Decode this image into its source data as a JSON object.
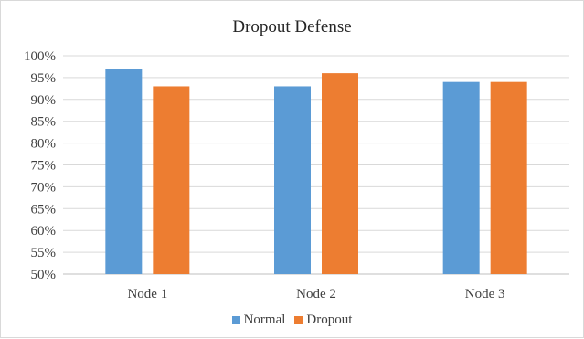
{
  "chart_data": {
    "type": "bar",
    "title": "Dropout Defense",
    "categories": [
      "Node 1",
      "Node 2",
      "Node 3"
    ],
    "series": [
      {
        "name": "Normal",
        "values": [
          97,
          93,
          94
        ],
        "color": "#5b9bd5"
      },
      {
        "name": "Dropout",
        "values": [
          93,
          96,
          94
        ],
        "color": "#ed7d31"
      }
    ],
    "ylim": [
      50,
      100
    ],
    "yticks": [
      "50%",
      "55%",
      "60%",
      "65%",
      "70%",
      "75%",
      "80%",
      "85%",
      "90%",
      "95%",
      "100%"
    ],
    "grid": true,
    "legend": "bottom"
  }
}
